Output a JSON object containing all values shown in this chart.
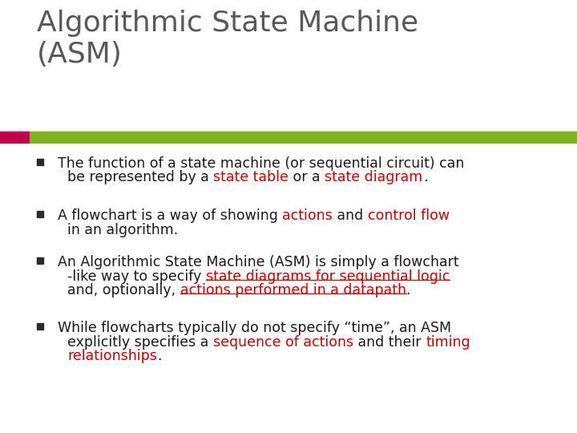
{
  "title_line1": "Algorithmic State Machine",
  "title_line2": "(ASM)",
  "title_color": "#595959",
  "bg_color": "#ffffff",
  "bar_pink_color": "#C0004B",
  "bar_green_color": "#7DB521",
  "bullet_color": "#2b2b2b",
  "black": "#1a1a1a",
  "red": "#CC0000",
  "font_size_title": 26,
  "font_size_body": 12.5,
  "bullet_lines": [
    [
      [
        {
          "text": "The function of a state machine (or sequential circuit) can",
          "color": "#1a1a1a",
          "underline": false
        }
      ],
      [
        {
          "text": "be represented by a ",
          "color": "#1a1a1a",
          "underline": false
        },
        {
          "text": "state table",
          "color": "#CC0000",
          "underline": false
        },
        {
          "text": " or a ",
          "color": "#1a1a1a",
          "underline": false
        },
        {
          "text": "state diagram",
          "color": "#CC0000",
          "underline": false
        },
        {
          "text": ".",
          "color": "#1a1a1a",
          "underline": false
        }
      ]
    ],
    [
      [
        {
          "text": "A flowchart is a way of showing ",
          "color": "#1a1a1a",
          "underline": false
        },
        {
          "text": "actions",
          "color": "#CC0000",
          "underline": false
        },
        {
          "text": " and ",
          "color": "#1a1a1a",
          "underline": false
        },
        {
          "text": "control flow",
          "color": "#CC0000",
          "underline": false
        }
      ],
      [
        {
          "text": "in an algorithm.",
          "color": "#1a1a1a",
          "underline": false
        }
      ]
    ],
    [
      [
        {
          "text": "An Algorithmic State Machine (ASM) is simply a flowchart",
          "color": "#1a1a1a",
          "underline": false
        }
      ],
      [
        {
          "text": "-like way to specify ",
          "color": "#1a1a1a",
          "underline": false
        },
        {
          "text": "state diagrams for sequential logic",
          "color": "#CC0000",
          "underline": true
        }
      ],
      [
        {
          "text": "and, optionally, ",
          "color": "#1a1a1a",
          "underline": false
        },
        {
          "text": "actions performed in a datapath",
          "color": "#CC0000",
          "underline": true
        },
        {
          "text": ".",
          "color": "#1a1a1a",
          "underline": false
        }
      ]
    ],
    [
      [
        {
          "text": "While flowcharts typically do not specify “time”, an ASM",
          "color": "#1a1a1a",
          "underline": false
        }
      ],
      [
        {
          "text": "explicitly specifies a ",
          "color": "#1a1a1a",
          "underline": false
        },
        {
          "text": "sequence of actions",
          "color": "#CC0000",
          "underline": false
        },
        {
          "text": " and their ",
          "color": "#1a1a1a",
          "underline": false
        },
        {
          "text": "timing",
          "color": "#CC0000",
          "underline": false
        }
      ],
      [
        {
          "text": "relationships",
          "color": "#CC0000",
          "underline": false
        },
        {
          "text": ".",
          "color": "#1a1a1a",
          "underline": false
        }
      ]
    ]
  ]
}
